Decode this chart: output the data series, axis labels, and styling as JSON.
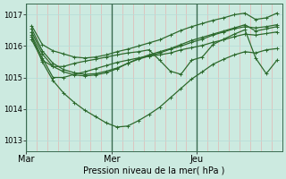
{
  "bg_color": "#cceae0",
  "line_color": "#2d6a2d",
  "grid_color_v": "#e8a8a8",
  "grid_color_h": "#b8ddd8",
  "ylabel": "Pression niveau de la mer( hPa )",
  "xtick_labels": [
    "Mar",
    "Mer",
    "Jeu"
  ],
  "ylim": [
    1012.65,
    1017.35
  ],
  "yticks": [
    1013,
    1014,
    1015,
    1016,
    1017
  ],
  "n_per_day": 8,
  "n_days": 3,
  "day_positions": [
    0,
    8,
    16
  ],
  "series": [
    [
      1016.65,
      1016.05,
      1015.85,
      1015.75,
      1015.65,
      1015.62,
      1015.65,
      1015.72,
      1015.82,
      1015.9,
      1016.0,
      1016.1,
      1016.2,
      1016.35,
      1016.5,
      1016.62,
      1016.72,
      1016.82,
      1016.9,
      1017.0,
      1017.05,
      1016.85,
      1016.9,
      1017.05
    ],
    [
      1016.55,
      1015.85,
      1015.45,
      1015.25,
      1015.15,
      1015.1,
      1015.12,
      1015.2,
      1015.3,
      1015.45,
      1015.58,
      1015.68,
      1015.78,
      1015.9,
      1016.0,
      1016.12,
      1016.22,
      1016.35,
      1016.45,
      1016.55,
      1016.62,
      1016.58,
      1016.62,
      1016.68
    ],
    [
      1016.45,
      1015.75,
      1015.35,
      1015.18,
      1015.08,
      1015.05,
      1015.08,
      1015.15,
      1015.28,
      1015.45,
      1015.6,
      1015.72,
      1015.82,
      1015.92,
      1016.05,
      1016.18,
      1016.28,
      1016.38,
      1016.48,
      1016.58,
      1016.68,
      1016.48,
      1016.55,
      1016.62
    ],
    [
      1016.35,
      1015.62,
      1015.0,
      1015.0,
      1015.1,
      1015.18,
      1015.28,
      1015.38,
      1015.48,
      1015.55,
      1015.62,
      1015.68,
      1015.72,
      1015.78,
      1015.88,
      1015.95,
      1016.02,
      1016.12,
      1016.2,
      1016.3,
      1016.38,
      1016.35,
      1016.4,
      1016.45
    ],
    [
      1016.3,
      1015.5,
      1014.9,
      1014.5,
      1014.2,
      1013.95,
      1013.75,
      1013.55,
      1013.42,
      1013.45,
      1013.62,
      1013.82,
      1014.05,
      1014.35,
      1014.65,
      1014.95,
      1015.18,
      1015.42,
      1015.58,
      1015.72,
      1015.82,
      1015.78,
      1015.88,
      1015.92
    ],
    [
      1016.2,
      1015.55,
      1015.35,
      1015.35,
      1015.45,
      1015.52,
      1015.58,
      1015.65,
      1015.72,
      1015.78,
      1015.82,
      1015.88,
      1015.55,
      1015.2,
      1015.1,
      1015.55,
      1015.65,
      1016.05,
      1016.22,
      1016.38,
      1016.52,
      1015.62,
      1015.12,
      1015.55
    ]
  ],
  "marker": "+",
  "markersize": 3,
  "linewidth": 0.9
}
